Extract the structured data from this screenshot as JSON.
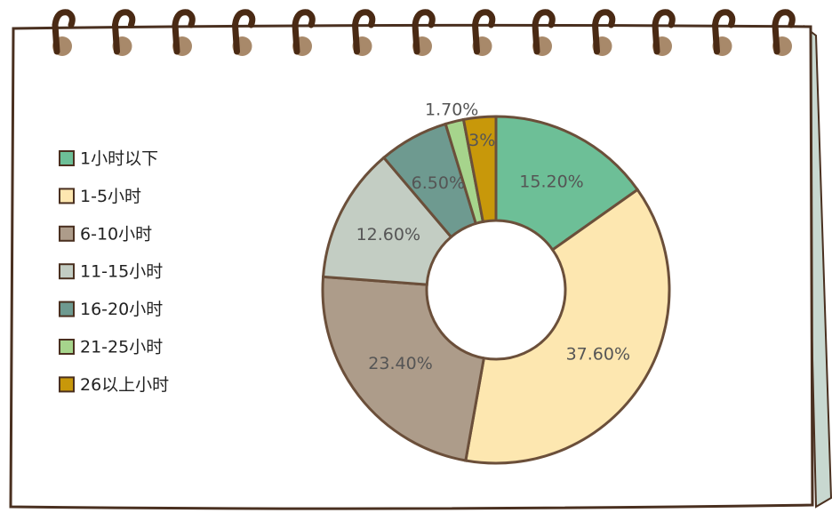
{
  "chart_data": {
    "type": "donut",
    "categories": [
      "1小时以下",
      "1-5小时",
      "6-10小时",
      "11-15小时",
      "16-20小时",
      "21-25小时",
      "26以上小时"
    ],
    "values": [
      15.2,
      37.6,
      23.4,
      12.6,
      6.5,
      1.7,
      3
    ],
    "value_labels": [
      "15.20%",
      "37.60%",
      "23.40%",
      "12.60%",
      "6.50%",
      "1.70%",
      "3%"
    ],
    "colors": [
      "#6dbf97",
      "#fde7b0",
      "#ad9c8a",
      "#c3cdc3",
      "#6e9a90",
      "#a6d48c",
      "#c8980a"
    ],
    "legend": "left"
  }
}
